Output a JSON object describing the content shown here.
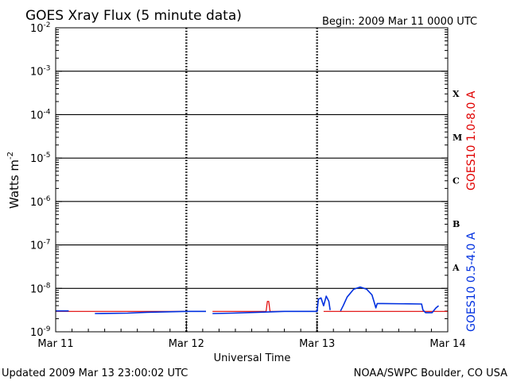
{
  "chart_data": {
    "type": "line",
    "title": "GOES Xray Flux (5 minute data)",
    "begin_label": "Begin:  2009 Mar 11 0000 UTC",
    "xlabel": "Universal Time",
    "ylabel": "Watts m",
    "ylabel_sup": "-2",
    "footer_left": "Updated 2009 Mar 13 23:00:02 UTC",
    "footer_right": "NOAA/SWPC Boulder, CO USA",
    "x_ticks": [
      "Mar 11",
      "Mar 12",
      "Mar 13",
      "Mar 14"
    ],
    "x_range_days": [
      0,
      3
    ],
    "y_scale": "log",
    "y_range_exp": [
      -9,
      -2
    ],
    "y_ticks": [
      {
        "base": "10",
        "exp": "-2"
      },
      {
        "base": "10",
        "exp": "-3"
      },
      {
        "base": "10",
        "exp": "-4"
      },
      {
        "base": "10",
        "exp": "-5"
      },
      {
        "base": "10",
        "exp": "-6"
      },
      {
        "base": "10",
        "exp": "-7"
      },
      {
        "base": "10",
        "exp": "-8"
      },
      {
        "base": "10",
        "exp": "-9"
      }
    ],
    "flare_classes": [
      {
        "label": "X",
        "exp": -3.5
      },
      {
        "label": "M",
        "exp": -4.5
      },
      {
        "label": "C",
        "exp": -5.5
      },
      {
        "label": "B",
        "exp": -6.5
      },
      {
        "label": "A",
        "exp": -7.5
      }
    ],
    "series": [
      {
        "name": "GOES10 1.0-8.0 A",
        "color": "#e00000",
        "points": [
          [
            0.0,
            -8.53
          ],
          [
            0.35,
            -8.53
          ],
          [
            0.36,
            -8.53
          ],
          [
            1.15,
            -8.53
          ],
          [
            1.16,
            null
          ],
          [
            1.2,
            -8.53
          ],
          [
            1.6,
            -8.53
          ],
          [
            1.61,
            -8.53
          ],
          [
            1.62,
            -8.3
          ],
          [
            1.63,
            -8.3
          ],
          [
            1.64,
            -8.53
          ],
          [
            1.99,
            -8.53
          ],
          [
            2.02,
            null
          ],
          [
            2.05,
            -8.53
          ],
          [
            3.0,
            -8.53
          ]
        ]
      },
      {
        "name": "GOES10 0.5-4.0 A",
        "color": "#0030e0",
        "points": [
          [
            0.0,
            -8.52
          ],
          [
            0.1,
            -8.52
          ],
          [
            0.12,
            null
          ],
          [
            0.3,
            -8.58
          ],
          [
            0.55,
            -8.57
          ],
          [
            0.7,
            -8.55
          ],
          [
            1.0,
            -8.53
          ],
          [
            1.15,
            -8.53
          ],
          [
            1.16,
            null
          ],
          [
            1.2,
            -8.58
          ],
          [
            1.35,
            -8.57
          ],
          [
            1.55,
            -8.55
          ],
          [
            1.75,
            -8.53
          ],
          [
            2.0,
            -8.53
          ],
          [
            2.01,
            -8.25
          ],
          [
            2.03,
            -8.22
          ],
          [
            2.05,
            -8.4
          ],
          [
            2.07,
            -8.18
          ],
          [
            2.09,
            -8.3
          ],
          [
            2.1,
            -8.5
          ],
          [
            2.11,
            null
          ],
          [
            2.18,
            -8.52
          ],
          [
            2.2,
            -8.4
          ],
          [
            2.23,
            -8.2
          ],
          [
            2.28,
            -8.02
          ],
          [
            2.33,
            -7.97
          ],
          [
            2.38,
            -8.02
          ],
          [
            2.42,
            -8.15
          ],
          [
            2.44,
            -8.35
          ],
          [
            2.45,
            -8.45
          ],
          [
            2.46,
            -8.35
          ],
          [
            2.5,
            -8.35
          ],
          [
            2.8,
            -8.36
          ],
          [
            2.81,
            -8.5
          ],
          [
            2.83,
            -8.56
          ],
          [
            2.88,
            -8.56
          ],
          [
            2.91,
            -8.45
          ],
          [
            2.93,
            -8.4
          ],
          [
            2.95,
            null
          ]
        ]
      }
    ]
  }
}
